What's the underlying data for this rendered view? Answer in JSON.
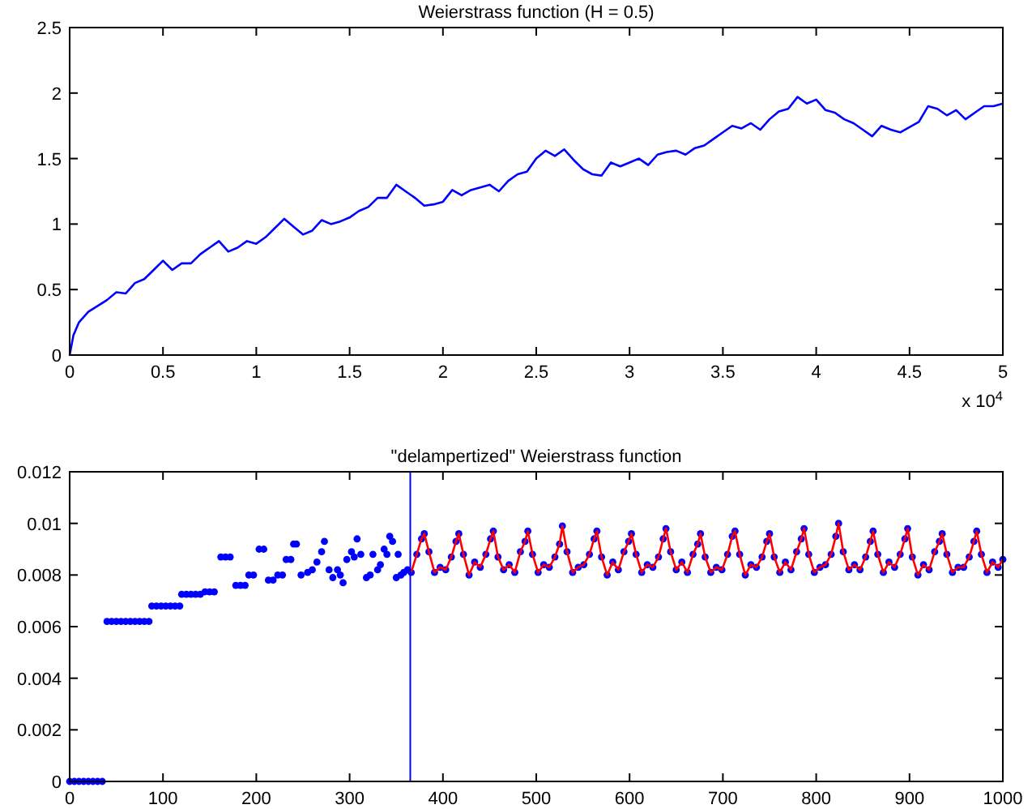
{
  "chart_data": [
    {
      "type": "line",
      "title": "Weierstrass function (H = 0.5)",
      "xlim": [
        0,
        5
      ],
      "ylim": [
        0,
        2.5
      ],
      "xticks": [
        0,
        0.5,
        1,
        1.5,
        2,
        2.5,
        3,
        3.5,
        4,
        4.5,
        5
      ],
      "yticks": [
        0,
        0.5,
        1,
        1.5,
        2,
        2.5
      ],
      "grid": false,
      "annotations": [
        "x 10$^{4}$"
      ],
      "series": [
        {
          "color": "#0000ff",
          "x": [
            0,
            0.02,
            0.05,
            0.1,
            0.2,
            0.25,
            0.3,
            0.35,
            0.4,
            0.45,
            0.5,
            0.55,
            0.6,
            0.65,
            0.7,
            0.75,
            0.8,
            0.85,
            0.9,
            0.95,
            1,
            1.05,
            1.1,
            1.15,
            1.2,
            1.25,
            1.3,
            1.35,
            1.4,
            1.45,
            1.5,
            1.55,
            1.6,
            1.65,
            1.7,
            1.75,
            1.8,
            1.85,
            1.9,
            1.95,
            2,
            2.05,
            2.1,
            2.15,
            2.2,
            2.25,
            2.3,
            2.35,
            2.4,
            2.45,
            2.5,
            2.55,
            2.6,
            2.65,
            2.7,
            2.75,
            2.8,
            2.85,
            2.9,
            2.95,
            3,
            3.05,
            3.1,
            3.15,
            3.2,
            3.25,
            3.3,
            3.35,
            3.4,
            3.45,
            3.5,
            3.55,
            3.6,
            3.65,
            3.7,
            3.75,
            3.8,
            3.85,
            3.9,
            3.95,
            4,
            4.05,
            4.1,
            4.15,
            4.2,
            4.25,
            4.3,
            4.35,
            4.4,
            4.45,
            4.5,
            4.55,
            4.6,
            4.65,
            4.7,
            4.75,
            4.8,
            4.85,
            4.9,
            4.95,
            5
          ],
          "values": [
            0,
            0.15,
            0.25,
            0.33,
            0.42,
            0.48,
            0.47,
            0.55,
            0.58,
            0.65,
            0.72,
            0.65,
            0.7,
            0.7,
            0.77,
            0.82,
            0.87,
            0.79,
            0.82,
            0.87,
            0.85,
            0.9,
            0.97,
            1.04,
            0.98,
            0.92,
            0.95,
            1.03,
            1.0,
            1.02,
            1.05,
            1.1,
            1.13,
            1.2,
            1.2,
            1.3,
            1.25,
            1.2,
            1.14,
            1.15,
            1.17,
            1.26,
            1.22,
            1.26,
            1.28,
            1.3,
            1.25,
            1.33,
            1.38,
            1.4,
            1.5,
            1.56,
            1.52,
            1.57,
            1.49,
            1.42,
            1.38,
            1.37,
            1.47,
            1.44,
            1.47,
            1.5,
            1.45,
            1.53,
            1.55,
            1.56,
            1.53,
            1.58,
            1.6,
            1.65,
            1.7,
            1.75,
            1.73,
            1.77,
            1.72,
            1.8,
            1.86,
            1.88,
            1.97,
            1.92,
            1.95,
            1.87,
            1.85,
            1.8,
            1.77,
            1.72,
            1.67,
            1.75,
            1.72,
            1.7,
            1.74,
            1.78,
            1.9,
            1.88,
            1.83,
            1.87,
            1.8,
            1.85,
            1.9,
            1.9,
            1.92
          ]
        }
      ]
    },
    {
      "type": "scatter",
      "title": "\"delampertized\" Weierstrass function",
      "xlim": [
        0,
        1000
      ],
      "ylim": [
        0,
        0.012
      ],
      "xticks": [
        0,
        100,
        200,
        300,
        400,
        500,
        600,
        700,
        800,
        900,
        1000
      ],
      "yticks": [
        0,
        0.002,
        0.004,
        0.006,
        0.008,
        0.01,
        0.012
      ],
      "grid": false,
      "ref_lines": [
        {
          "axis": "x",
          "value": 365,
          "color": "#0000ff"
        }
      ],
      "series": [
        {
          "marker": "circle",
          "color": "#0000ff",
          "x": [
            0,
            5,
            10,
            15,
            20,
            25,
            30,
            35,
            40,
            45,
            50,
            55,
            60,
            65,
            70,
            75,
            80,
            85,
            88,
            93,
            98,
            103,
            108,
            113,
            118,
            120,
            125,
            130,
            135,
            140,
            145,
            150,
            155,
            162,
            167,
            172,
            178,
            183,
            188,
            192,
            197,
            203,
            208,
            213,
            218,
            223,
            228,
            232,
            237,
            240,
            243,
            248,
            255,
            260,
            265,
            270,
            273,
            278,
            282,
            287,
            290,
            293,
            297,
            302,
            305,
            308,
            312,
            318,
            322,
            325,
            330,
            333,
            337,
            340,
            343,
            346,
            350,
            352,
            355,
            358,
            362,
            366,
            372,
            377,
            380,
            385,
            391,
            397,
            403,
            409,
            414,
            417,
            422,
            428,
            434,
            440,
            446,
            451,
            454,
            459,
            465,
            471,
            477,
            483,
            488,
            491,
            496,
            502,
            508,
            514,
            520,
            525,
            528,
            533,
            539,
            545,
            551,
            557,
            562,
            565,
            570,
            576,
            582,
            588,
            594,
            599,
            602,
            607,
            613,
            619,
            625,
            631,
            636,
            639,
            644,
            650,
            656,
            662,
            668,
            673,
            676,
            681,
            687,
            693,
            699,
            705,
            710,
            713,
            718,
            724,
            730,
            736,
            742,
            747,
            750,
            755,
            761,
            767,
            773,
            779,
            784,
            787,
            792,
            798,
            804,
            810,
            816,
            821,
            824,
            829,
            835,
            841,
            847,
            853,
            858,
            861,
            866,
            872,
            878,
            884,
            890,
            895,
            898,
            903,
            909,
            915,
            921,
            927,
            932,
            935,
            940,
            946,
            952,
            958,
            964,
            969,
            972,
            977,
            983,
            989,
            995,
            1000
          ],
          "values": [
            0,
            0,
            0,
            0,
            0,
            0,
            0,
            0,
            0.0062,
            0.0062,
            0.0062,
            0.0062,
            0.0062,
            0.0062,
            0.0062,
            0.0062,
            0.0062,
            0.0062,
            0.0068,
            0.0068,
            0.0068,
            0.0068,
            0.0068,
            0.0068,
            0.0068,
            0.00725,
            0.00725,
            0.00725,
            0.00725,
            0.00725,
            0.00735,
            0.00735,
            0.00735,
            0.0087,
            0.0087,
            0.0087,
            0.0076,
            0.0076,
            0.0076,
            0.008,
            0.008,
            0.009,
            0.009,
            0.0078,
            0.0078,
            0.008,
            0.008,
            0.0086,
            0.0086,
            0.0092,
            0.0092,
            0.008,
            0.0081,
            0.0082,
            0.0085,
            0.0089,
            0.0093,
            0.0082,
            0.0079,
            0.0082,
            0.008,
            0.0077,
            0.0086,
            0.0089,
            0.0087,
            0.0094,
            0.0088,
            0.0079,
            0.008,
            0.0088,
            0.0082,
            0.0084,
            0.009,
            0.0088,
            0.0095,
            0.0093,
            0.0079,
            0.0088,
            0.008,
            0.0081,
            0.0082,
            0.0081,
            0.0088,
            0.0094,
            0.0096,
            0.0089,
            0.0081,
            0.0083,
            0.0082,
            0.0087,
            0.0093,
            0.0096,
            0.0088,
            0.008,
            0.0085,
            0.0083,
            0.0088,
            0.0094,
            0.0097,
            0.0087,
            0.0082,
            0.0084,
            0.0081,
            0.0089,
            0.0093,
            0.0097,
            0.0088,
            0.0081,
            0.0084,
            0.0083,
            0.0087,
            0.0092,
            0.0099,
            0.0089,
            0.0081,
            0.0083,
            0.0084,
            0.0088,
            0.0094,
            0.0097,
            0.0087,
            0.008,
            0.0085,
            0.0082,
            0.0089,
            0.0093,
            0.0096,
            0.0088,
            0.0081,
            0.0084,
            0.0083,
            0.0087,
            0.0094,
            0.0098,
            0.0089,
            0.0082,
            0.0085,
            0.0081,
            0.0088,
            0.0092,
            0.0096,
            0.0087,
            0.0081,
            0.0083,
            0.0082,
            0.0088,
            0.0095,
            0.0097,
            0.0088,
            0.008,
            0.0084,
            0.0083,
            0.0087,
            0.0093,
            0.0096,
            0.0087,
            0.0081,
            0.0085,
            0.0082,
            0.0089,
            0.0094,
            0.0098,
            0.0088,
            0.0081,
            0.0083,
            0.0084,
            0.0088,
            0.0095,
            0.01,
            0.0089,
            0.0082,
            0.0084,
            0.0082,
            0.0087,
            0.0093,
            0.0097,
            0.0088,
            0.0081,
            0.0085,
            0.0083,
            0.0088,
            0.0094,
            0.0098,
            0.0087,
            0.008,
            0.0084,
            0.0082,
            0.0089,
            0.0093,
            0.0096,
            0.0088,
            0.0081,
            0.0083,
            0.0083,
            0.0087,
            0.0093,
            0.0097,
            0.0088,
            0.0081,
            0.0085,
            0.0083,
            0.0086
          ]
        },
        {
          "type": "line",
          "color": "#ff0000",
          "x": [
            366,
            372,
            377,
            380,
            385,
            391,
            397,
            403,
            409,
            414,
            417,
            422,
            428,
            434,
            440,
            446,
            451,
            454,
            459,
            465,
            471,
            477,
            483,
            488,
            491,
            496,
            502,
            508,
            514,
            520,
            525,
            528,
            533,
            539,
            545,
            551,
            557,
            562,
            565,
            570,
            576,
            582,
            588,
            594,
            599,
            602,
            607,
            613,
            619,
            625,
            631,
            636,
            639,
            644,
            650,
            656,
            662,
            668,
            673,
            676,
            681,
            687,
            693,
            699,
            705,
            710,
            713,
            718,
            724,
            730,
            736,
            742,
            747,
            750,
            755,
            761,
            767,
            773,
            779,
            784,
            787,
            792,
            798,
            804,
            810,
            816,
            821,
            824,
            829,
            835,
            841,
            847,
            853,
            858,
            861,
            866,
            872,
            878,
            884,
            890,
            895,
            898,
            903,
            909,
            915,
            921,
            927,
            932,
            935,
            940,
            946,
            952,
            958,
            964,
            969,
            972,
            977,
            983,
            989,
            995,
            1000
          ],
          "values": [
            0.0081,
            0.0088,
            0.0094,
            0.0096,
            0.0089,
            0.0081,
            0.0083,
            0.0082,
            0.0087,
            0.0093,
            0.0096,
            0.0088,
            0.008,
            0.0085,
            0.0083,
            0.0088,
            0.0094,
            0.0097,
            0.0087,
            0.0082,
            0.0084,
            0.0081,
            0.0089,
            0.0093,
            0.0097,
            0.0088,
            0.0081,
            0.0084,
            0.0083,
            0.0087,
            0.0092,
            0.0099,
            0.0089,
            0.0081,
            0.0083,
            0.0084,
            0.0088,
            0.0094,
            0.0097,
            0.0087,
            0.008,
            0.0085,
            0.0082,
            0.0089,
            0.0093,
            0.0096,
            0.0088,
            0.0081,
            0.0084,
            0.0083,
            0.0087,
            0.0094,
            0.0098,
            0.0089,
            0.0082,
            0.0085,
            0.0081,
            0.0088,
            0.0092,
            0.0096,
            0.0087,
            0.0081,
            0.0083,
            0.0082,
            0.0088,
            0.0095,
            0.0097,
            0.0088,
            0.008,
            0.0084,
            0.0083,
            0.0087,
            0.0093,
            0.0096,
            0.0087,
            0.0081,
            0.0085,
            0.0082,
            0.0089,
            0.0094,
            0.0098,
            0.0088,
            0.0081,
            0.0083,
            0.0084,
            0.0088,
            0.0095,
            0.01,
            0.0089,
            0.0082,
            0.0084,
            0.0082,
            0.0087,
            0.0093,
            0.0097,
            0.0088,
            0.0081,
            0.0085,
            0.0083,
            0.0088,
            0.0094,
            0.0098,
            0.0087,
            0.008,
            0.0084,
            0.0082,
            0.0089,
            0.0093,
            0.0096,
            0.0088,
            0.0081,
            0.0083,
            0.0083,
            0.0087,
            0.0093,
            0.0097,
            0.0088,
            0.0081,
            0.0085,
            0.0083,
            0.0086
          ]
        }
      ]
    }
  ]
}
